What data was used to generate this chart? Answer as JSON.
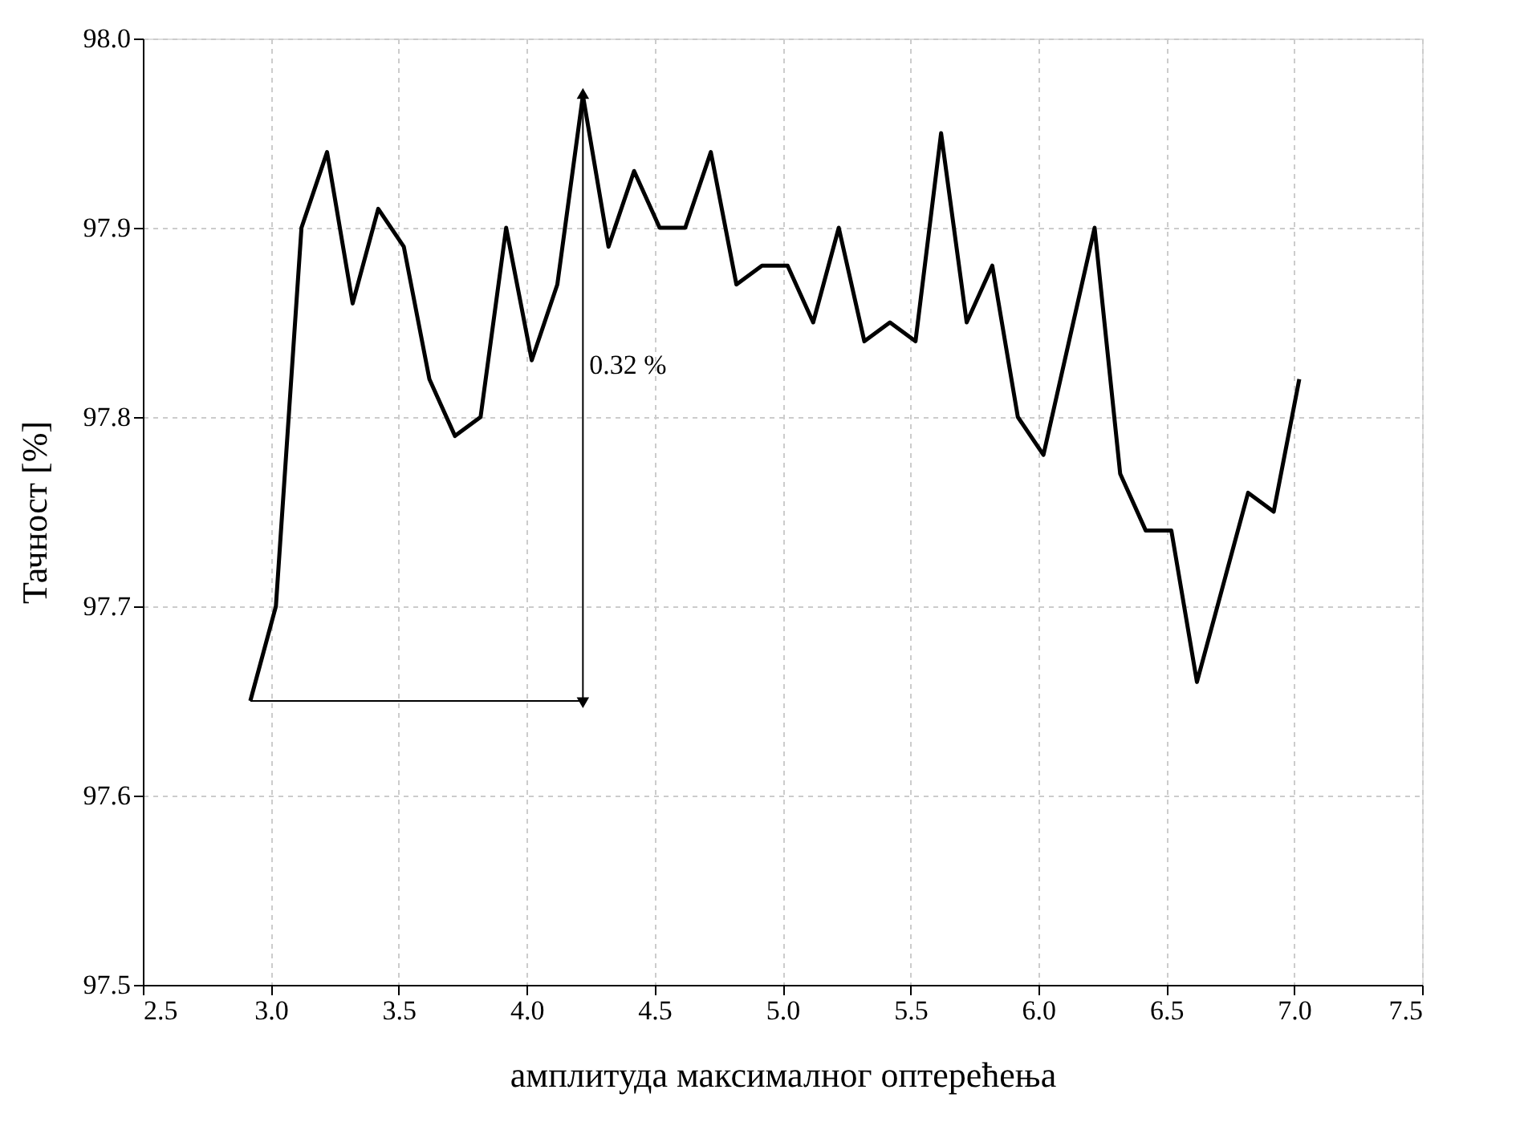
{
  "chart_data": {
    "type": "line",
    "xlabel": "амплитуда максималног оптерећења",
    "ylabel": "Тачност [%]",
    "x": [
      2.92,
      3.02,
      3.12,
      3.22,
      3.32,
      3.42,
      3.52,
      3.62,
      3.72,
      3.82,
      3.92,
      4.02,
      4.12,
      4.22,
      4.32,
      4.42,
      4.52,
      4.62,
      4.72,
      4.82,
      4.92,
      5.02,
      5.12,
      5.22,
      5.32,
      5.42,
      5.52,
      5.62,
      5.72,
      5.82,
      5.92,
      6.02,
      6.12,
      6.22,
      6.32,
      6.42,
      6.52,
      6.62,
      6.72,
      6.82,
      6.92,
      7.02
    ],
    "series": [
      {
        "color": "#000000",
        "values": [
          97.65,
          97.7,
          97.9,
          97.94,
          97.86,
          97.91,
          97.89,
          97.82,
          97.79,
          97.8,
          97.9,
          97.83,
          97.87,
          97.97,
          97.89,
          97.93,
          97.9,
          97.9,
          97.94,
          97.87,
          97.88,
          97.88,
          97.85,
          97.9,
          97.84,
          97.85,
          97.84,
          97.95,
          97.85,
          97.88,
          97.8,
          97.78,
          97.84,
          97.9,
          97.77,
          97.74,
          97.74,
          97.66,
          97.71,
          97.76,
          97.75,
          97.82
        ]
      }
    ],
    "annotations": [
      "0.32 %"
    ],
    "xlim": [
      2.5,
      7.5
    ],
    "xticks": [
      {
        "value": 2.5,
        "label": "2.5"
      },
      {
        "value": 3,
        "label": "3.0"
      },
      {
        "value": 3.5,
        "label": "3.5"
      },
      {
        "value": 4,
        "label": "4.0"
      },
      {
        "value": 4.5,
        "label": "4.5"
      },
      {
        "value": 5,
        "label": "5.0"
      },
      {
        "value": 5.5,
        "label": "5.5"
      },
      {
        "value": 6,
        "label": "6.0"
      },
      {
        "value": 6.5,
        "label": "6.5"
      },
      {
        "value": 7,
        "label": "7.0"
      },
      {
        "value": 7.5,
        "label": "7.5"
      }
    ],
    "ylim": [
      97.5,
      98.0
    ],
    "yticks": [
      {
        "value": 97.5,
        "label": "97.5"
      },
      {
        "value": 97.6,
        "label": "97.6"
      },
      {
        "value": 97.7,
        "label": "97.7"
      },
      {
        "value": 97.8,
        "label": "97.8"
      },
      {
        "value": 97.9,
        "label": "97.9"
      },
      {
        "value": 98.0,
        "label": "98.0"
      }
    ],
    "grid": true,
    "line_style": "solid",
    "marker": "none"
  }
}
